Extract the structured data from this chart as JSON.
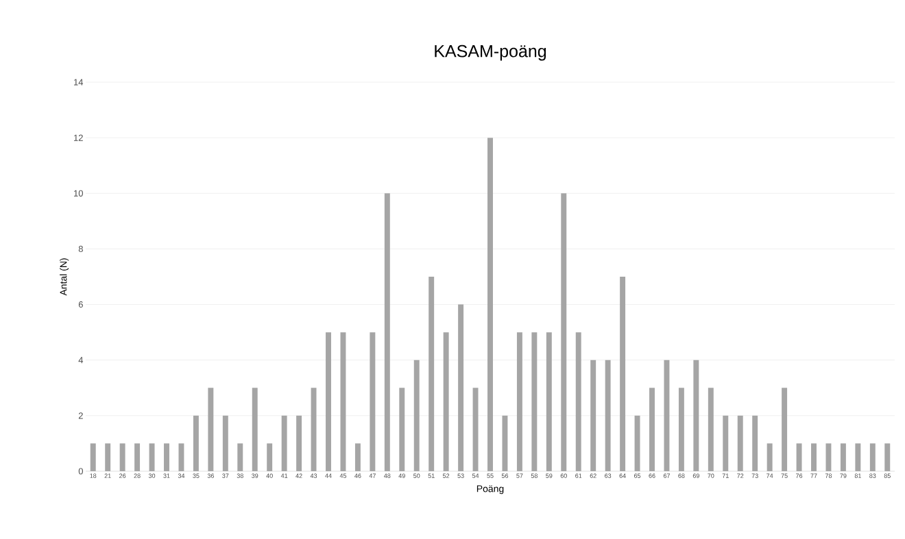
{
  "chart_data": {
    "type": "bar",
    "title": "KASAM-poäng",
    "xlabel": "Poäng",
    "ylabel": "Antal (N)",
    "categories": [
      "18",
      "21",
      "26",
      "28",
      "30",
      "31",
      "34",
      "35",
      "36",
      "37",
      "38",
      "39",
      "40",
      "41",
      "42",
      "43",
      "44",
      "45",
      "46",
      "47",
      "48",
      "49",
      "50",
      "51",
      "52",
      "53",
      "54",
      "55",
      "56",
      "57",
      "58",
      "59",
      "60",
      "61",
      "62",
      "63",
      "64",
      "65",
      "66",
      "67",
      "68",
      "69",
      "70",
      "71",
      "72",
      "73",
      "74",
      "75",
      "76",
      "77",
      "78",
      "79",
      "81",
      "83",
      "85"
    ],
    "values": [
      1,
      1,
      1,
      1,
      1,
      1,
      1,
      2,
      3,
      2,
      1,
      3,
      1,
      2,
      2,
      3,
      5,
      5,
      1,
      5,
      10,
      3,
      4,
      7,
      5,
      6,
      3,
      12,
      2,
      5,
      5,
      5,
      10,
      5,
      4,
      4,
      7,
      2,
      3,
      4,
      3,
      4,
      3,
      2,
      2,
      2,
      1,
      3,
      1,
      1,
      1,
      1,
      1,
      1,
      1
    ],
    "color": "#a5a5a5",
    "ylim": [
      0,
      14
    ],
    "yticks": [
      0,
      2,
      4,
      6,
      8,
      10,
      12,
      14
    ],
    "grid": "y"
  }
}
